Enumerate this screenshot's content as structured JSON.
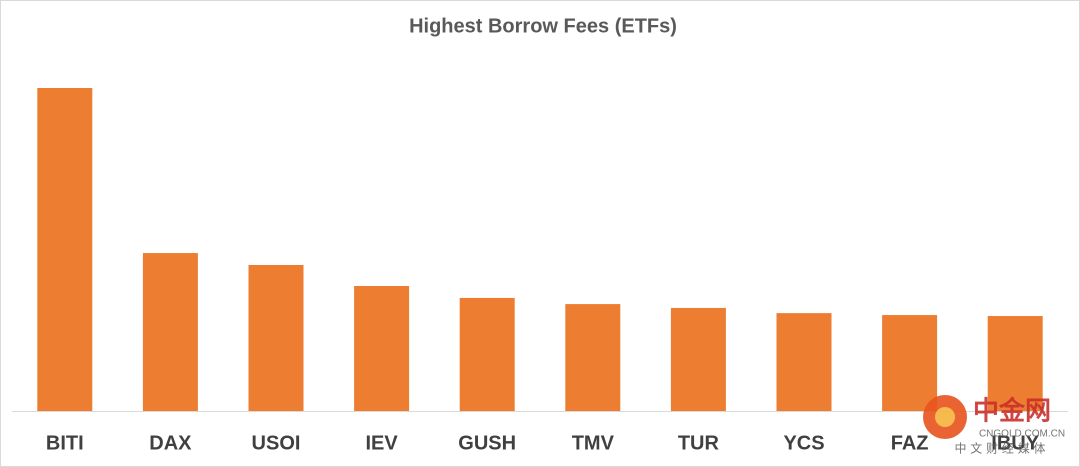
{
  "chart_data": {
    "type": "bar",
    "title": "Highest Borrow Fees (ETFs)",
    "categories": [
      "BITI",
      "DAX",
      "USOI",
      "IEV",
      "GUSH",
      "TMV",
      "TUR",
      "YCS",
      "FAZ",
      "IBUY"
    ],
    "values": [
      100,
      48.9,
      45.2,
      38.7,
      35,
      33.1,
      31.9,
      30.3,
      29.7,
      29.4
    ],
    "color": "#ed7d31",
    "ylim": [
      0,
      100
    ]
  },
  "watermark": {
    "name": "中金网",
    "site": "CNGOLD.COM.CN",
    "tagline": "中 文 财 经 媒 体"
  }
}
